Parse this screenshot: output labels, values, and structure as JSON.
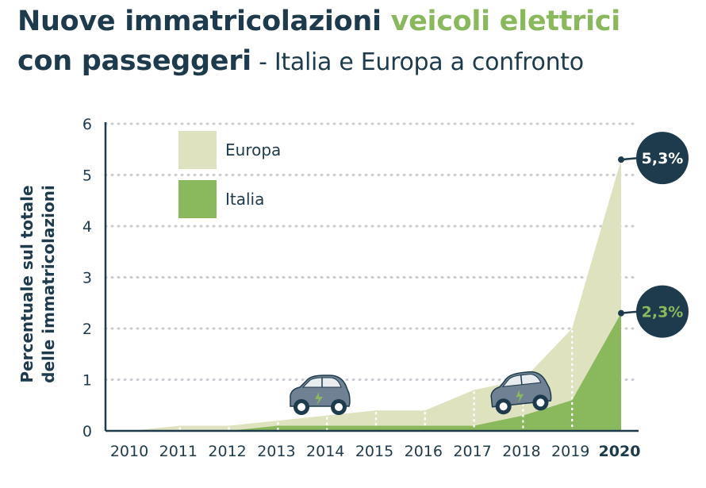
{
  "header": {
    "title_part1": "Nuove immatricolazioni ",
    "title_accent": "veicoli elettrici",
    "title_part2": "con passeggeri",
    "title_sub": " - Italia e Europa a confronto"
  },
  "colors": {
    "navy": "#1d3b4c",
    "europa": "#dfe2bf",
    "italia": "#8ab95d",
    "grid": "#c9ccd1"
  },
  "chart_data": {
    "type": "area",
    "ylabel_line1": "Percentuale sul totale",
    "ylabel_line2": "delle immatricolazioni",
    "ylim": [
      0,
      6
    ],
    "yticks": [
      "0",
      "1",
      "2",
      "3",
      "4",
      "5",
      "6"
    ],
    "categories": [
      "2010",
      "2011",
      "2012",
      "2013",
      "2014",
      "2015",
      "2016",
      "2017",
      "2018",
      "2019",
      "2020"
    ],
    "grid": true,
    "legend_position": "top-left",
    "series": [
      {
        "name": "Europa",
        "color": "#dfe2bf",
        "values": [
          0.0,
          0.1,
          0.1,
          0.2,
          0.3,
          0.4,
          0.4,
          0.8,
          1.0,
          2.0,
          5.3
        ]
      },
      {
        "name": "Italia",
        "color": "#8ab95d",
        "values": [
          0.0,
          0.0,
          0.0,
          0.1,
          0.1,
          0.1,
          0.1,
          0.1,
          0.3,
          0.6,
          2.3
        ]
      }
    ],
    "annotations": [
      {
        "series": "Europa",
        "label": "5,3%",
        "value": 5.3,
        "text_color": "#ffffff"
      },
      {
        "series": "Italia",
        "label": "2,3%",
        "value": 2.3,
        "text_color": "#8ab95d"
      }
    ],
    "icons": [
      "car-icon",
      "car-icon"
    ]
  }
}
